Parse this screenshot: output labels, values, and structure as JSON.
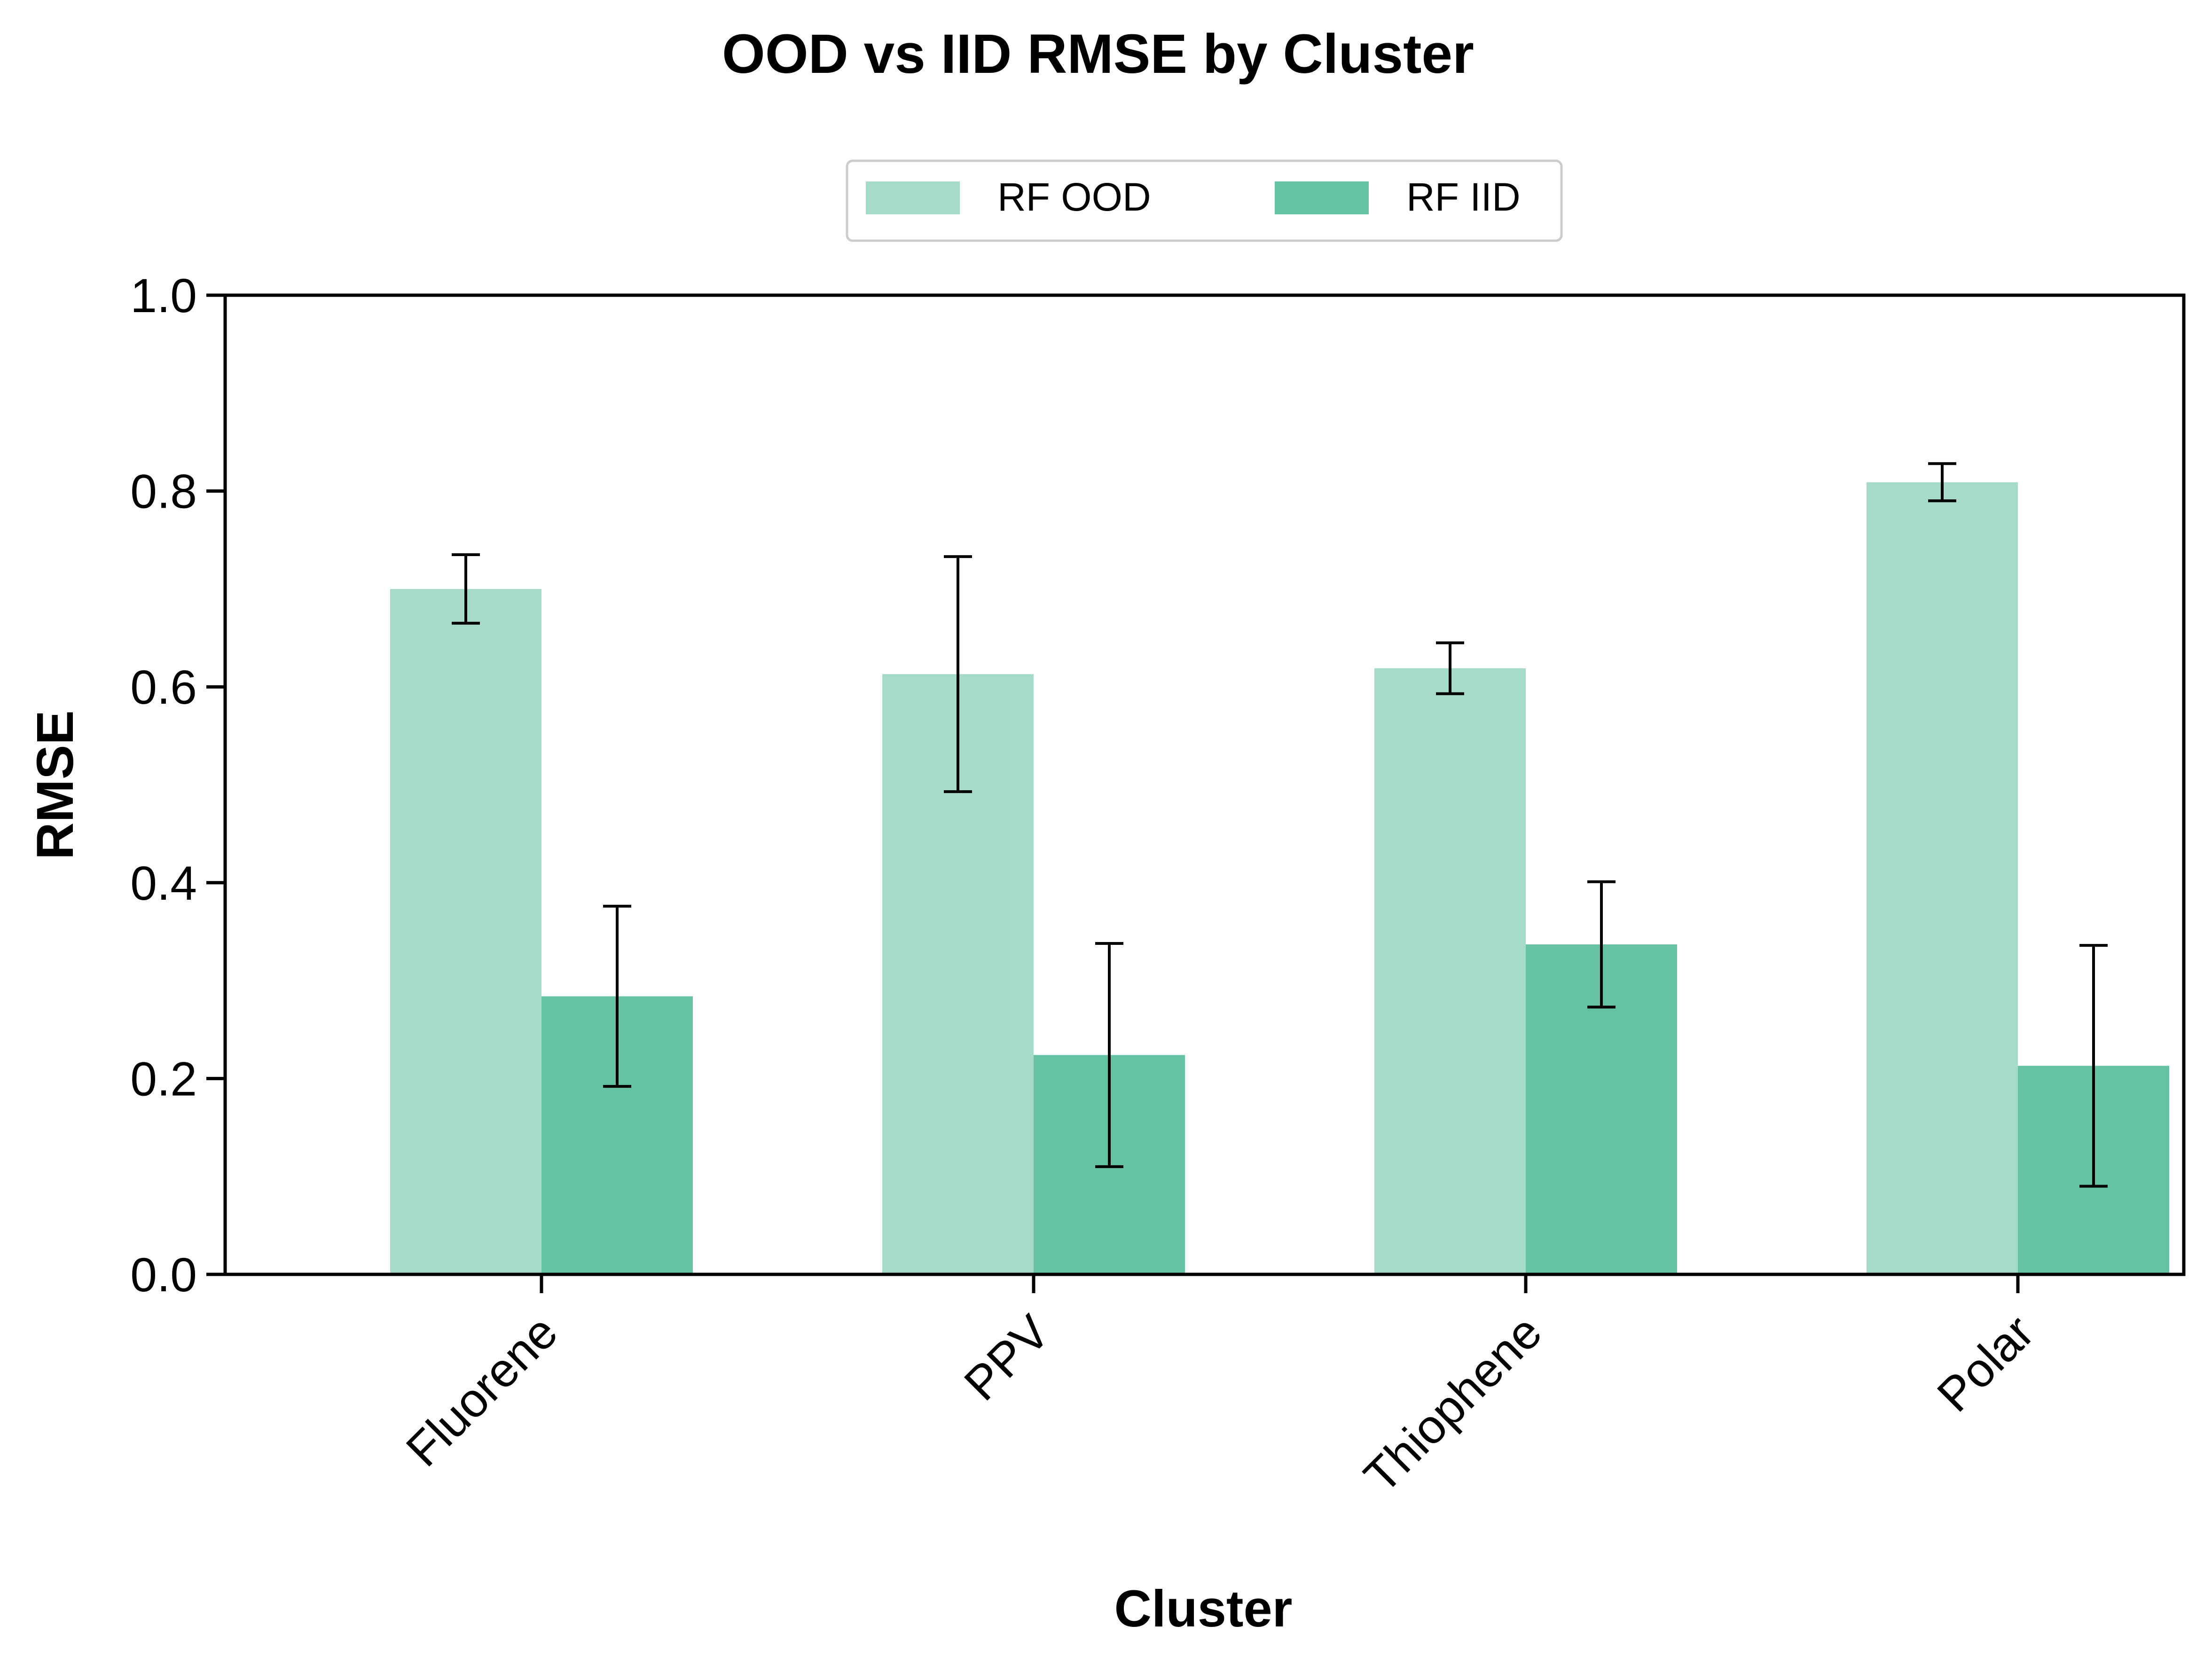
{
  "chart_data": {
    "type": "bar",
    "title": "OOD vs IID RMSE by Cluster",
    "xlabel": "Cluster",
    "ylabel": "RMSE",
    "ylim": [
      0,
      1.0
    ],
    "yticks": [
      "0.0",
      "0.2",
      "0.4",
      "0.6",
      "0.8",
      "1.0"
    ],
    "categories": [
      "Fluorene",
      "PPV",
      "Thiophene",
      "Polar"
    ],
    "series": [
      {
        "name": "RF OOD",
        "color": "#a6dbca",
        "values": [
          0.7,
          0.613,
          0.619,
          0.809
        ],
        "errors": [
          0.035,
          0.12,
          0.026,
          0.019
        ]
      },
      {
        "name": "RF IID",
        "color": "#66c2a5",
        "values": [
          0.284,
          0.224,
          0.337,
          0.213
        ],
        "errors": [
          0.092,
          0.114,
          0.064,
          0.123
        ]
      }
    ],
    "grid": false,
    "legend_position": "top-center"
  }
}
